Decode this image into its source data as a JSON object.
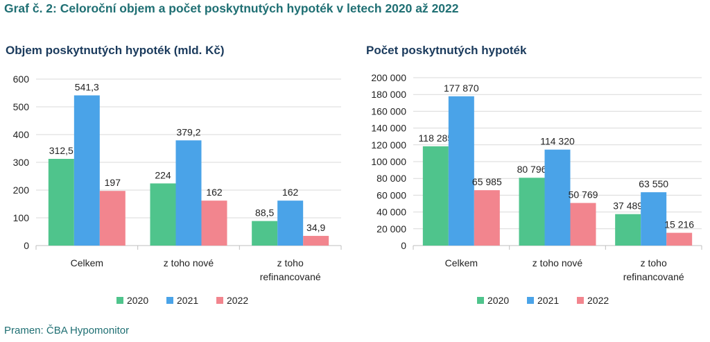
{
  "title": "Graf č. 2: Celoroční objem a počet poskytnutých hypoték v letech 2020 až 2022",
  "source": "Pramen: ČBA Hypomonitor",
  "colors": {
    "2020": "#4fc48c",
    "2021": "#4aa3e8",
    "2022": "#f2858e",
    "grid": "#d9d9d9",
    "title": "#1f6f73"
  },
  "chart_data": [
    {
      "type": "bar",
      "title": "Objem poskytnutých hypoték (mld. Kč)",
      "categories": [
        [
          "Celkem"
        ],
        [
          "z toho nové"
        ],
        [
          "z toho",
          "refinancované"
        ]
      ],
      "ylim": [
        0,
        600
      ],
      "yticks": [
        0,
        100,
        200,
        300,
        400,
        500,
        600
      ],
      "ytick_labels": [
        "0",
        "100",
        "200",
        "300",
        "400",
        "500",
        "600"
      ],
      "series": [
        {
          "name": "2020",
          "values": [
            312.5,
            224,
            88.5
          ],
          "labels": [
            "312,5",
            "224",
            "88,5"
          ]
        },
        {
          "name": "2021",
          "values": [
            541.3,
            379.2,
            162
          ],
          "labels": [
            "541,3",
            "379,2",
            "162"
          ]
        },
        {
          "name": "2022",
          "values": [
            197,
            162,
            34.9
          ],
          "labels": [
            "197",
            "162",
            "34,9"
          ]
        }
      ],
      "grid": true,
      "legend": "bottom"
    },
    {
      "type": "bar",
      "title": "Počet poskytnutých hypoték",
      "categories": [
        [
          "Celkem"
        ],
        [
          "z toho nové"
        ],
        [
          "z toho",
          "refinancované"
        ]
      ],
      "ylim": [
        0,
        200000
      ],
      "yticks": [
        0,
        20000,
        40000,
        60000,
        80000,
        100000,
        120000,
        140000,
        160000,
        180000,
        200000
      ],
      "ytick_labels": [
        "0",
        "20 000",
        "40 000",
        "60 000",
        "80 000",
        "100 000",
        "120 000",
        "140 000",
        "160 000",
        "180 000",
        "200 000"
      ],
      "series": [
        {
          "name": "2020",
          "values": [
            118285,
            80796,
            37489
          ],
          "labels": [
            "118 285",
            "80 796",
            "37 489"
          ]
        },
        {
          "name": "2021",
          "values": [
            177870,
            114320,
            63550
          ],
          "labels": [
            "177 870",
            "114 320",
            "63 550"
          ]
        },
        {
          "name": "2022",
          "values": [
            65985,
            50769,
            15216
          ],
          "labels": [
            "65 985",
            "50 769",
            "15 216"
          ]
        }
      ],
      "grid": true,
      "legend": "bottom"
    }
  ]
}
